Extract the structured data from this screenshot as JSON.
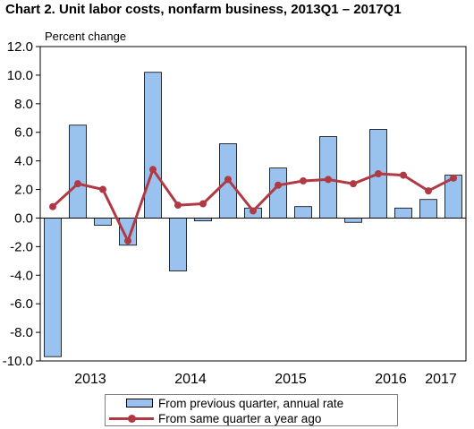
{
  "chart_data": {
    "type": "bar",
    "title": "Chart  2. Unit labor costs, nonfarm business, 2013Q1 – 2017Q1",
    "ylabel": "Percent change",
    "ylim": [
      -10,
      12
    ],
    "yticks": [
      "12.0",
      "10.0",
      "8.0",
      "6.0",
      "4.0",
      "2.0",
      "0.0",
      "-2.0",
      "-4.0",
      "-6.0",
      "-8.0",
      "-10.0"
    ],
    "year_labels": [
      {
        "label": "2013",
        "at_quarter": 2
      },
      {
        "label": "2014",
        "at_quarter": 6
      },
      {
        "label": "2015",
        "at_quarter": 10
      },
      {
        "label": "2016",
        "at_quarter": 14
      },
      {
        "label": "2017",
        "at_quarter": 16
      }
    ],
    "categories": [
      "2013Q1",
      "2013Q2",
      "2013Q3",
      "2013Q4",
      "2014Q1",
      "2014Q2",
      "2014Q3",
      "2014Q4",
      "2015Q1",
      "2015Q2",
      "2015Q3",
      "2015Q4",
      "2016Q1",
      "2016Q2",
      "2016Q3",
      "2016Q4",
      "2017Q1"
    ],
    "series": [
      {
        "name": "From previous quarter, annual rate",
        "type": "bar",
        "color": "#99c2ee",
        "values": [
          -9.7,
          6.5,
          -0.5,
          -1.9,
          10.2,
          -3.7,
          -0.2,
          5.2,
          0.7,
          3.5,
          0.8,
          5.7,
          -0.3,
          6.2,
          0.7,
          1.3,
          3.0
        ]
      },
      {
        "name": "From same quarter a year ago",
        "type": "line",
        "color": "#b03a44",
        "values": [
          0.8,
          2.4,
          2.0,
          -1.6,
          3.4,
          0.9,
          1.0,
          2.7,
          0.5,
          2.3,
          2.6,
          2.7,
          2.4,
          3.1,
          3.0,
          1.9,
          2.8
        ]
      }
    ],
    "grid": false,
    "legend_position": "bottom"
  }
}
